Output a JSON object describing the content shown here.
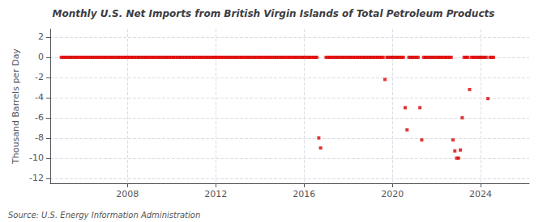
{
  "chart_data": {
    "type": "scatter",
    "title": "Monthly U.S. Net Imports from British Virgin Islands of Total Petroleum Products",
    "ylabel": "Thousand Barrels per Day",
    "annotation": "Source: U.S. Energy Information Administration",
    "color": "#dd0000",
    "marker": "square",
    "grid": true,
    "xlim": [
      2004.5,
      2026.2
    ],
    "ylim": [
      -12.5,
      2.8
    ],
    "xticks": [
      2008,
      2012,
      2016,
      2020,
      2024
    ],
    "yticks": [
      2,
      0,
      -2,
      -4,
      -6,
      -8,
      -10,
      -12
    ],
    "x": [
      2005.0,
      2005.083,
      2005.167,
      2005.25,
      2005.333,
      2005.417,
      2005.5,
      2005.583,
      2005.667,
      2005.75,
      2005.833,
      2005.917,
      2006.0,
      2006.083,
      2006.167,
      2006.25,
      2006.333,
      2006.417,
      2006.5,
      2006.583,
      2006.667,
      2006.75,
      2006.833,
      2006.917,
      2007.0,
      2007.083,
      2007.167,
      2007.25,
      2007.333,
      2007.417,
      2007.5,
      2007.583,
      2007.667,
      2007.75,
      2007.833,
      2007.917,
      2008.0,
      2008.083,
      2008.167,
      2008.25,
      2008.333,
      2008.417,
      2008.5,
      2008.583,
      2008.667,
      2008.75,
      2008.833,
      2008.917,
      2009.0,
      2009.083,
      2009.167,
      2009.25,
      2009.333,
      2009.417,
      2009.5,
      2009.583,
      2009.667,
      2009.75,
      2009.833,
      2009.917,
      2010.0,
      2010.083,
      2010.167,
      2010.25,
      2010.333,
      2010.417,
      2010.5,
      2010.583,
      2010.667,
      2010.75,
      2010.833,
      2010.917,
      2011.0,
      2011.083,
      2011.167,
      2011.25,
      2011.333,
      2011.417,
      2011.5,
      2011.583,
      2011.667,
      2011.75,
      2011.833,
      2011.917,
      2012.0,
      2012.083,
      2012.167,
      2012.25,
      2012.333,
      2012.417,
      2012.5,
      2012.583,
      2012.667,
      2012.75,
      2012.833,
      2012.917,
      2013.0,
      2013.083,
      2013.167,
      2013.25,
      2013.333,
      2013.417,
      2013.5,
      2013.583,
      2013.667,
      2013.75,
      2013.833,
      2013.917,
      2014.0,
      2014.083,
      2014.167,
      2014.25,
      2014.333,
      2014.417,
      2014.5,
      2014.583,
      2014.667,
      2014.75,
      2014.833,
      2014.917,
      2015.0,
      2015.083,
      2015.167,
      2015.25,
      2015.333,
      2015.417,
      2015.5,
      2015.583,
      2015.667,
      2015.75,
      2015.833,
      2015.917,
      2016.0,
      2016.083,
      2016.167,
      2016.25,
      2016.333,
      2016.417,
      2016.5,
      2016.583,
      2016.667,
      2016.75,
      2017.0,
      2017.083,
      2017.167,
      2017.25,
      2017.333,
      2017.417,
      2017.5,
      2017.583,
      2017.667,
      2017.75,
      2017.833,
      2017.917,
      2018.0,
      2018.083,
      2018.167,
      2018.25,
      2018.333,
      2018.417,
      2018.5,
      2018.583,
      2018.667,
      2018.75,
      2018.833,
      2018.917,
      2019.0,
      2019.083,
      2019.167,
      2019.25,
      2019.333,
      2019.417,
      2019.5,
      2019.583,
      2019.667,
      2019.75,
      2019.833,
      2019.917,
      2020.0,
      2020.083,
      2020.167,
      2020.25,
      2020.333,
      2020.417,
      2020.5,
      2020.583,
      2020.667,
      2020.75,
      2020.833,
      2020.917,
      2021.0,
      2021.083,
      2021.167,
      2021.25,
      2021.333,
      2021.417,
      2021.5,
      2021.583,
      2021.667,
      2021.75,
      2021.833,
      2021.917,
      2022.0,
      2022.083,
      2022.167,
      2022.25,
      2022.333,
      2022.417,
      2022.5,
      2022.583,
      2022.667,
      2022.75,
      2022.833,
      2022.917,
      2023.0,
      2023.083,
      2023.167,
      2023.25,
      2023.333,
      2023.417,
      2023.5,
      2023.583,
      2023.667,
      2023.75,
      2023.833,
      2023.917,
      2024.0,
      2024.083,
      2024.167,
      2024.25,
      2024.333,
      2024.417,
      2024.5,
      2024.583
    ],
    "values": [
      0,
      0,
      0,
      0,
      0,
      0,
      0,
      0,
      0,
      0,
      0,
      0,
      0,
      0,
      0,
      0,
      0,
      0,
      0,
      0,
      0,
      0,
      0,
      0,
      0,
      0,
      0,
      0,
      0,
      0,
      0,
      0,
      0,
      0,
      0,
      0,
      0,
      0,
      0,
      0,
      0,
      0,
      0,
      0,
      0,
      0,
      0,
      0,
      0,
      0,
      0,
      0,
      0,
      0,
      0,
      0,
      0,
      0,
      0,
      0,
      0,
      0,
      0,
      0,
      0,
      0,
      0,
      0,
      0,
      0,
      0,
      0,
      0,
      0,
      0,
      0,
      0,
      0,
      0,
      0,
      0,
      0,
      0,
      0,
      0,
      0,
      0,
      0,
      0,
      0,
      0,
      0,
      0,
      0,
      0,
      0,
      0,
      0,
      0,
      0,
      0,
      0,
      0,
      0,
      0,
      0,
      0,
      0,
      0,
      0,
      0,
      0,
      0,
      0,
      0,
      0,
      0,
      0,
      0,
      0,
      0,
      0,
      0,
      0,
      0,
      0,
      0,
      0,
      0,
      0,
      0,
      0,
      0,
      0,
      0,
      0,
      0,
      0,
      0,
      0,
      -8.0,
      -9.0,
      0,
      0,
      0,
      0,
      0,
      0,
      0,
      0,
      0,
      0,
      0,
      0,
      0,
      0,
      0,
      0,
      0,
      0,
      0,
      0,
      0,
      0,
      0,
      0,
      0,
      0,
      0,
      0,
      0,
      0,
      0,
      0,
      -2.2,
      0,
      0,
      0,
      0,
      0,
      0,
      0,
      0,
      0,
      0,
      -5.0,
      -7.2,
      0,
      0,
      0,
      0,
      0,
      0,
      -5.0,
      -8.2,
      0,
      0,
      0,
      0,
      0,
      0,
      0,
      0,
      0,
      0,
      0,
      0,
      0,
      0,
      0,
      0,
      -8.2,
      -9.3,
      -10.0,
      -10.0,
      -9.2,
      -6.0,
      0,
      0,
      0,
      -3.2,
      0,
      0,
      0,
      0,
      0,
      0,
      0,
      0,
      0,
      -4.1,
      0,
      0,
      0
    ]
  }
}
